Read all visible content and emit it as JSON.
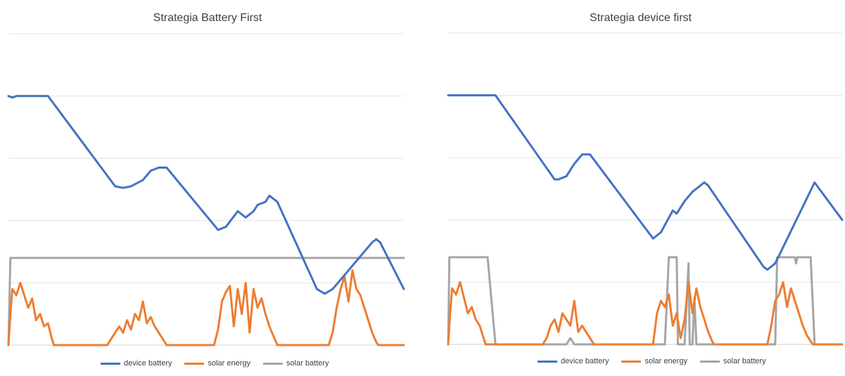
{
  "chart_data": [
    {
      "type": "line",
      "title": "Strategia Battery First",
      "xlabel": "",
      "ylabel": "",
      "ylim": [
        0,
        100
      ],
      "grid": true,
      "legend_position": "bottom",
      "series": [
        {
          "name": "device battery",
          "color": "#4472C4",
          "points": [
            [
              0,
              80
            ],
            [
              1,
              79.5
            ],
            [
              2,
              80
            ],
            [
              10,
              80
            ],
            [
              27,
              51
            ],
            [
              29,
              50.5
            ],
            [
              31,
              51
            ],
            [
              34,
              53
            ],
            [
              36,
              56
            ],
            [
              38,
              57
            ],
            [
              40,
              57
            ],
            [
              53,
              37
            ],
            [
              55,
              38
            ],
            [
              58,
              43
            ],
            [
              60,
              41
            ],
            [
              62,
              43
            ],
            [
              63,
              45
            ],
            [
              65,
              46
            ],
            [
              66,
              48
            ],
            [
              68,
              46
            ],
            [
              78,
              18
            ],
            [
              80,
              16.5
            ],
            [
              82,
              18
            ],
            [
              88,
              27
            ],
            [
              92,
              33
            ],
            [
              93,
              34
            ],
            [
              94,
              33
            ],
            [
              100,
              18
            ]
          ]
        },
        {
          "name": "solar energy",
          "color": "#ED7D31",
          "points": [
            [
              0,
              0
            ],
            [
              0.5,
              10
            ],
            [
              1,
              18
            ],
            [
              2,
              16
            ],
            [
              3,
              20
            ],
            [
              4,
              16
            ],
            [
              5,
              12
            ],
            [
              6,
              15
            ],
            [
              7,
              8
            ],
            [
              8,
              10
            ],
            [
              9,
              6
            ],
            [
              10,
              7
            ],
            [
              11,
              2
            ],
            [
              11.5,
              0
            ],
            [
              25,
              0
            ],
            [
              26,
              2
            ],
            [
              27,
              4
            ],
            [
              28,
              6
            ],
            [
              29,
              4
            ],
            [
              30,
              8
            ],
            [
              31,
              5
            ],
            [
              32,
              10
            ],
            [
              33,
              8
            ],
            [
              34,
              14
            ],
            [
              35,
              7
            ],
            [
              36,
              9
            ],
            [
              37,
              6
            ],
            [
              38,
              4
            ],
            [
              39,
              2
            ],
            [
              40,
              0
            ],
            [
              52,
              0
            ],
            [
              53,
              5
            ],
            [
              54,
              14
            ],
            [
              55,
              17
            ],
            [
              56,
              19
            ],
            [
              57,
              6
            ],
            [
              58,
              18
            ],
            [
              59,
              10
            ],
            [
              60,
              20
            ],
            [
              61,
              4
            ],
            [
              62,
              18
            ],
            [
              63,
              12
            ],
            [
              64,
              15
            ],
            [
              65,
              10
            ],
            [
              66,
              6
            ],
            [
              67,
              3
            ],
            [
              68,
              0
            ],
            [
              81,
              0
            ],
            [
              82,
              4
            ],
            [
              83,
              12
            ],
            [
              84,
              18
            ],
            [
              85,
              22
            ],
            [
              86,
              14
            ],
            [
              87,
              24
            ],
            [
              88,
              18
            ],
            [
              89,
              16
            ],
            [
              90,
              12
            ],
            [
              91,
              8
            ],
            [
              92,
              4
            ],
            [
              93,
              1
            ],
            [
              93.5,
              0
            ],
            [
              100,
              0
            ]
          ]
        },
        {
          "name": "solar battery",
          "color": "#A5A5A5",
          "points": [
            [
              0,
              0
            ],
            [
              0.5,
              28
            ],
            [
              1,
              28
            ],
            [
              100,
              28
            ]
          ]
        }
      ]
    },
    {
      "type": "line",
      "title": "Strategia device first",
      "xlabel": "",
      "ylabel": "",
      "ylim": [
        0,
        100
      ],
      "grid": true,
      "legend_position": "bottom",
      "series": [
        {
          "name": "device battery",
          "color": "#4472C4",
          "points": [
            [
              0,
              80
            ],
            [
              12,
              80
            ],
            [
              27,
              53
            ],
            [
              28,
              53
            ],
            [
              30,
              54
            ],
            [
              32,
              58
            ],
            [
              34,
              61
            ],
            [
              36,
              61
            ],
            [
              52,
              34
            ],
            [
              54,
              36
            ],
            [
              57,
              43
            ],
            [
              58,
              42
            ],
            [
              60,
              46
            ],
            [
              62,
              49
            ],
            [
              64,
              51
            ],
            [
              65,
              52
            ],
            [
              66,
              51
            ],
            [
              80,
              25
            ],
            [
              81,
              24
            ],
            [
              83,
              26
            ],
            [
              93,
              52
            ],
            [
              100,
              40
            ]
          ]
        },
        {
          "name": "solar energy",
          "color": "#ED7D31",
          "points": [
            [
              0,
              0
            ],
            [
              0.5,
              10
            ],
            [
              1,
              18
            ],
            [
              2,
              16
            ],
            [
              3,
              20
            ],
            [
              4,
              15
            ],
            [
              5,
              10
            ],
            [
              6,
              12
            ],
            [
              7,
              8
            ],
            [
              8,
              6
            ],
            [
              9,
              2
            ],
            [
              9.5,
              0
            ],
            [
              24,
              0
            ],
            [
              25,
              2
            ],
            [
              26,
              6
            ],
            [
              27,
              8
            ],
            [
              28,
              4
            ],
            [
              29,
              10
            ],
            [
              30,
              8
            ],
            [
              31,
              6
            ],
            [
              32,
              14
            ],
            [
              33,
              4
            ],
            [
              34,
              6
            ],
            [
              35,
              4
            ],
            [
              36,
              2
            ],
            [
              37,
              0
            ],
            [
              52,
              0
            ],
            [
              53,
              10
            ],
            [
              54,
              14
            ],
            [
              55,
              12
            ],
            [
              56,
              16
            ],
            [
              57,
              6
            ],
            [
              58,
              10
            ],
            [
              59,
              2
            ],
            [
              60,
              8
            ],
            [
              61,
              20
            ],
            [
              62,
              10
            ],
            [
              63,
              18
            ],
            [
              64,
              12
            ],
            [
              65,
              8
            ],
            [
              66,
              4
            ],
            [
              67,
              1
            ],
            [
              67.5,
              0
            ],
            [
              81,
              0
            ],
            [
              82,
              6
            ],
            [
              83,
              14
            ],
            [
              84,
              16
            ],
            [
              85,
              20
            ],
            [
              86,
              12
            ],
            [
              87,
              18
            ],
            [
              88,
              14
            ],
            [
              89,
              10
            ],
            [
              90,
              6
            ],
            [
              91,
              3
            ],
            [
              92,
              1
            ],
            [
              92.5,
              0
            ],
            [
              100,
              0
            ]
          ]
        },
        {
          "name": "solar battery",
          "color": "#A5A5A5",
          "points": [
            [
              0,
              0
            ],
            [
              0.3,
              28
            ],
            [
              10,
              28
            ],
            [
              12,
              0
            ],
            [
              30,
              0
            ],
            [
              31,
              2
            ],
            [
              32,
              0
            ],
            [
              55,
              0
            ],
            [
              56,
              28
            ],
            [
              58,
              28
            ],
            [
              58.3,
              0
            ],
            [
              60,
              0
            ],
            [
              61,
              26
            ],
            [
              61.3,
              0
            ],
            [
              62,
              0
            ],
            [
              62.5,
              15
            ],
            [
              63,
              0
            ],
            [
              83,
              0
            ],
            [
              83.5,
              28
            ],
            [
              88,
              28
            ],
            [
              88.3,
              26
            ],
            [
              88.6,
              28
            ],
            [
              92,
              28
            ],
            [
              93,
              0
            ],
            [
              100,
              0
            ]
          ]
        }
      ]
    }
  ]
}
